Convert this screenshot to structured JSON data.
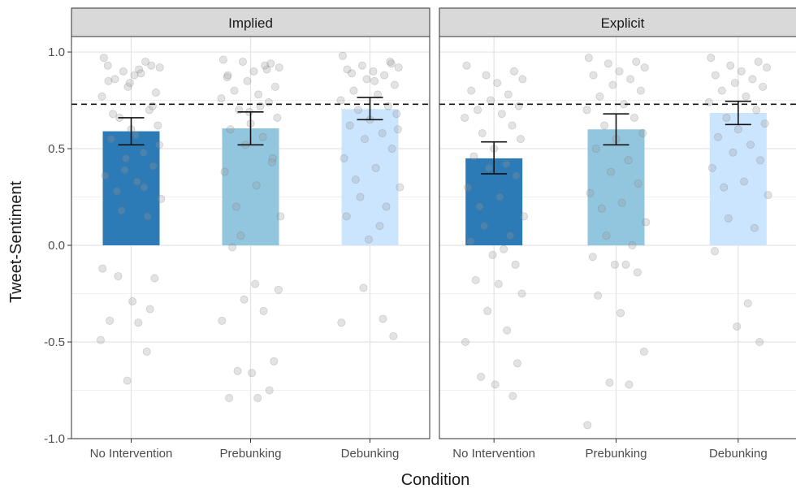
{
  "chart_data": {
    "type": "bar",
    "xlabel": "Condition",
    "ylabel": "Tweet-Sentiment",
    "ylim": [
      -1.0,
      1.08
    ],
    "yticks": [
      -1.0,
      -0.5,
      0.0,
      0.5,
      1.0
    ],
    "ytick_labels": [
      "-1.0",
      "-0.5",
      "0.0",
      "0.5",
      "1.0"
    ],
    "categories": [
      "No Intervention",
      "Prebunking",
      "Debunking"
    ],
    "reference_line": 0.73,
    "grid": true,
    "legend": "none",
    "colors": {
      "No Intervention": "#2c7bb6",
      "Prebunking": "#92c5de",
      "Debunking": "#cce5ff",
      "strip": "#d9d9d9",
      "points": "#999999"
    },
    "panels": [
      {
        "name": "Implied",
        "values": [
          0.59,
          0.605,
          0.705
        ],
        "ci_low": [
          0.52,
          0.52,
          0.65
        ],
        "ci_high": [
          0.66,
          0.69,
          0.765
        ],
        "points": [
          [
            0.97,
            0.93,
            0.9,
            0.92,
            0.88,
            0.85,
            0.95,
            0.82,
            0.79,
            0.86,
            0.91,
            0.77,
            0.7,
            0.66,
            0.62,
            0.6,
            0.55,
            0.48,
            0.45,
            0.41,
            0.36,
            0.33,
            0.28,
            0.24,
            0.18,
            0.15,
            0.93,
            0.89,
            0.84,
            0.72,
            0.68,
            0.57,
            0.52,
            0.39,
            0.3,
            -0.12,
            -0.17,
            -0.16,
            -0.29,
            -0.33,
            -0.39,
            -0.4,
            -0.49,
            -0.55,
            -0.7
          ],
          [
            0.96,
            0.94,
            0.95,
            0.92,
            0.9,
            0.88,
            0.93,
            0.85,
            0.82,
            0.8,
            0.78,
            0.76,
            0.74,
            0.7,
            0.66,
            0.63,
            0.6,
            0.56,
            0.52,
            0.45,
            0.38,
            0.31,
            0.2,
            0.15,
            0.05,
            0.91,
            0.87,
            0.72,
            0.69,
            0.43,
            -0.01,
            -0.2,
            -0.23,
            -0.28,
            -0.34,
            -0.39,
            -0.6,
            -0.65,
            -0.66,
            -0.75,
            -0.79,
            -0.79
          ],
          [
            0.98,
            0.95,
            0.93,
            0.92,
            0.9,
            0.91,
            0.88,
            0.86,
            0.83,
            0.8,
            0.78,
            0.75,
            0.72,
            0.7,
            0.68,
            0.65,
            0.62,
            0.58,
            0.55,
            0.5,
            0.45,
            0.4,
            0.34,
            0.3,
            0.25,
            0.2,
            0.15,
            0.1,
            0.03,
            0.94,
            0.89,
            0.85,
            0.6,
            -0.22,
            -0.38,
            -0.4,
            -0.47
          ]
        ]
      },
      {
        "name": "Explicit",
        "values": [
          0.45,
          0.6,
          0.685
        ],
        "ci_low": [
          0.37,
          0.52,
          0.625
        ],
        "ci_high": [
          0.535,
          0.68,
          0.745
        ],
        "points": [
          [
            0.93,
            0.9,
            0.88,
            0.86,
            0.84,
            0.8,
            0.78,
            0.75,
            0.72,
            0.7,
            0.68,
            0.66,
            0.62,
            0.58,
            0.55,
            0.5,
            0.46,
            0.42,
            0.4,
            0.36,
            0.3,
            0.25,
            0.2,
            0.15,
            0.1,
            0.05,
            0.02,
            -0.02,
            -0.05,
            -0.1,
            -0.18,
            -0.2,
            -0.25,
            -0.34,
            -0.44,
            -0.5,
            -0.61,
            -0.68,
            -0.72,
            -0.78
          ],
          [
            0.97,
            0.95,
            0.94,
            0.92,
            0.9,
            0.88,
            0.86,
            0.83,
            0.8,
            0.77,
            0.73,
            0.7,
            0.66,
            0.62,
            0.58,
            0.55,
            0.5,
            0.44,
            0.38,
            0.32,
            0.27,
            0.22,
            0.19,
            0.12,
            0.05,
            0.0,
            -0.06,
            -0.1,
            -0.1,
            -0.14,
            -0.26,
            -0.35,
            -0.55,
            -0.71,
            -0.72,
            -0.93
          ],
          [
            0.97,
            0.95,
            0.93,
            0.92,
            0.9,
            0.88,
            0.86,
            0.84,
            0.82,
            0.8,
            0.77,
            0.74,
            0.7,
            0.66,
            0.63,
            0.6,
            0.56,
            0.52,
            0.48,
            0.44,
            0.4,
            0.33,
            0.3,
            0.26,
            0.14,
            0.09,
            -0.03,
            -0.3,
            -0.42,
            -0.5
          ]
        ]
      }
    ]
  }
}
